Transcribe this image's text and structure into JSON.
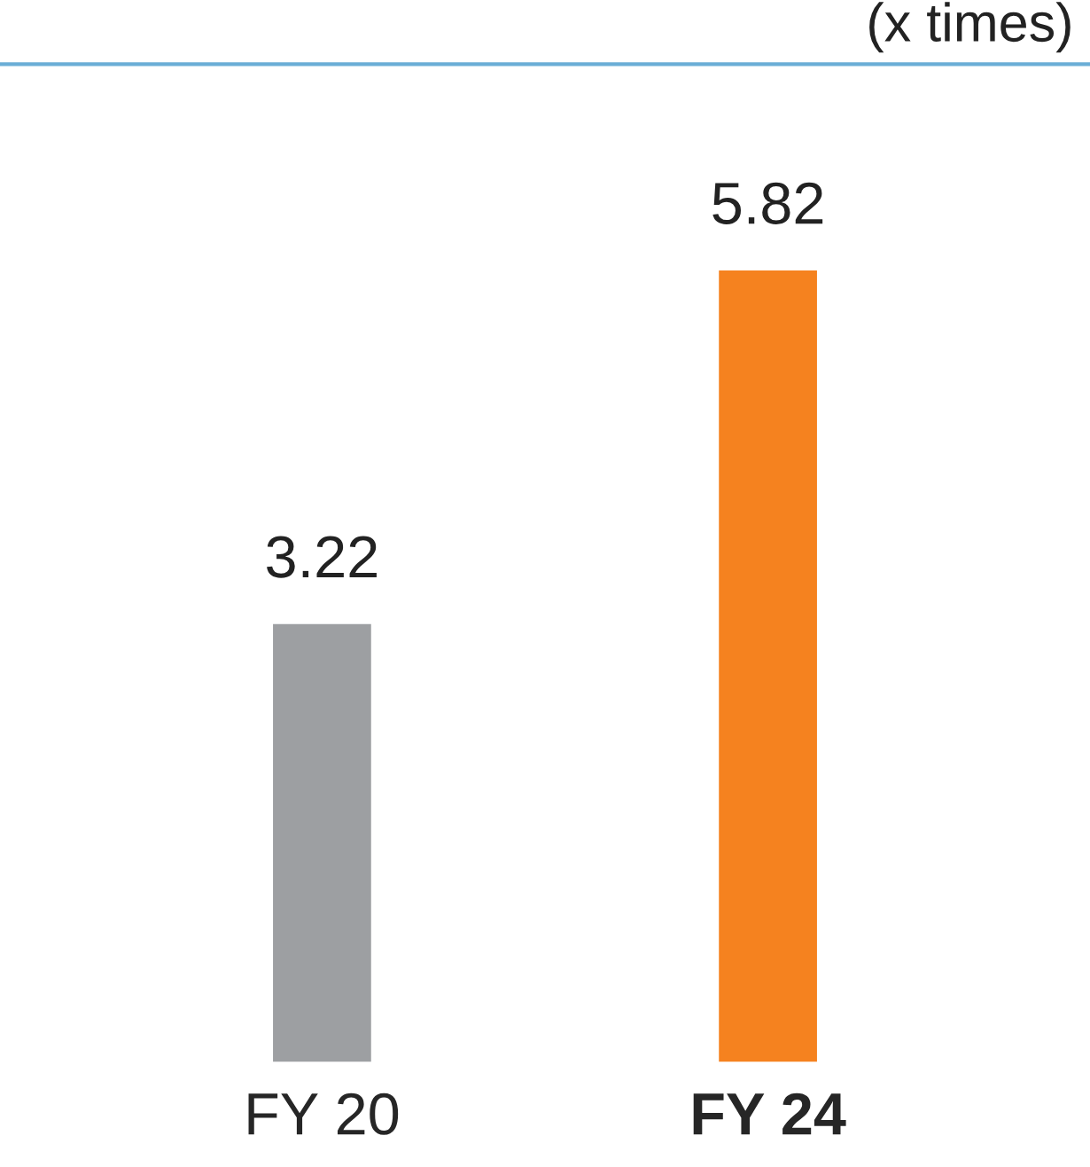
{
  "chart_data": {
    "type": "bar",
    "ylabel": "(x times)",
    "categories": [
      "FY 20",
      "FY 24"
    ],
    "values": [
      3.22,
      5.82
    ],
    "colors": [
      "#9d9fa2",
      "#f5821f"
    ],
    "data_labels": true
  }
}
